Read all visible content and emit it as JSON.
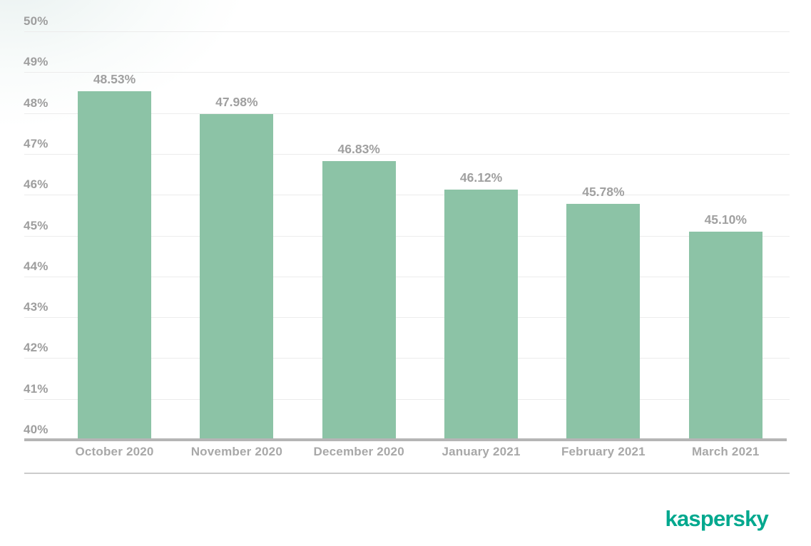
{
  "branding": {
    "logo_text": "kaspersky",
    "logo_color": "#00A88E"
  },
  "chart_data": {
    "type": "bar",
    "title": "",
    "categories": [
      "October 2020",
      "November 2020",
      "December 2020",
      "January 2021",
      "February 2021",
      "March 2021"
    ],
    "values": [
      48.53,
      47.98,
      46.83,
      46.12,
      45.78,
      45.1
    ],
    "value_labels": [
      "48.53%",
      "47.98%",
      "46.83%",
      "46.12%",
      "45.78%",
      "45.10%"
    ],
    "xlabel": "",
    "ylabel": "",
    "ylim": [
      40,
      50
    ],
    "y_ticks": [
      50,
      49,
      48,
      47,
      46,
      45,
      44,
      43,
      42,
      41,
      40
    ],
    "y_tick_suffix": "%",
    "grid": true,
    "legend": "none",
    "colors": {
      "bar": "#8CC3A6",
      "gridline": "#ececec",
      "baseline": "#b5b5b5",
      "value_label": "#a0a0a0",
      "y_tick": "#9e9e9e",
      "x_tick": "#a8a8a8",
      "divider": "#cccccc"
    }
  }
}
